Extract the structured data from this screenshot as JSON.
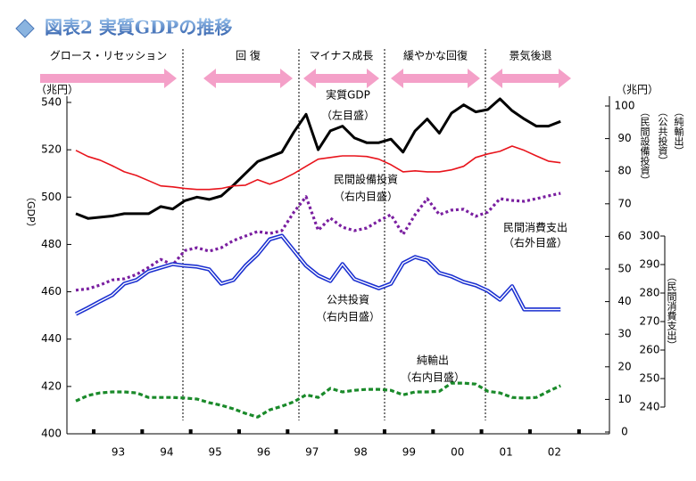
{
  "chart_data": {
    "type": "line",
    "title": "図表2 実質GDPの推移",
    "y_unit": "（兆円）",
    "y_label": "（GDP）",
    "y2_unit": "（兆円）",
    "y2_labels": [
      "（民間設備投資）",
      "（公共投資）",
      "（純輸出）"
    ],
    "y3_label": "（民間消費支出）",
    "phases": [
      "グロース・リセッション",
      "回 復",
      "マイナス成長",
      "緩やかな回復",
      "景気後退"
    ],
    "categories": [
      null,
      null,
      null,
      "93",
      null,
      null,
      null,
      "94",
      null,
      null,
      null,
      "95",
      null,
      null,
      null,
      "96",
      null,
      null,
      null,
      "97",
      null,
      null,
      null,
      "98",
      null,
      null,
      null,
      "99",
      null,
      null,
      null,
      "00",
      null,
      null,
      null,
      "01",
      null,
      null,
      null,
      "02",
      null
    ],
    "ylim": [
      400,
      540
    ],
    "yticks": [
      400,
      420,
      440,
      460,
      480,
      500,
      520,
      540
    ],
    "y2lim": [
      0,
      100
    ],
    "y2ticks": [
      0,
      10,
      20,
      30,
      40,
      50,
      60,
      70,
      80,
      90,
      100
    ],
    "y3lim": [
      240,
      300
    ],
    "y3ticks": [
      240,
      250,
      260,
      270,
      280,
      290,
      300
    ],
    "series": [
      {
        "name": "実質GDP",
        "note": "（左目盛）",
        "color": "#000000",
        "axis": "y",
        "values": [
          493,
          491,
          491.5,
          492,
          493,
          493,
          493,
          496,
          495,
          498.5,
          500,
          499,
          500.5,
          505,
          510,
          515,
          517,
          519,
          527.5,
          535,
          520,
          528,
          530,
          525,
          523,
          523,
          524.5,
          519,
          528,
          533,
          527,
          535.5,
          539,
          536,
          537,
          541.5,
          536.5,
          533,
          530,
          530,
          532
        ]
      },
      {
        "name": "民間設備投資",
        "note": "（右内目盛）",
        "color": "#e8141c",
        "axis": "y2",
        "values": [
          86.4,
          84.5,
          83.4,
          81.7,
          79.8,
          78.7,
          77.1,
          75.5,
          75.2,
          74.7,
          74.4,
          74.4,
          74.7,
          75.5,
          75.7,
          77.4,
          76.0,
          77.4,
          79.3,
          81.5,
          83.7,
          84.2,
          84.7,
          84.7,
          84.5,
          83.7,
          82.0,
          79.8,
          80.1,
          79.8,
          79.8,
          80.4,
          81.5,
          84.2,
          85.3,
          86.1,
          87.7,
          86.4,
          84.7,
          83.1,
          82.6
        ]
      },
      {
        "name": "民間消費支出",
        "note": "（右外目盛）",
        "color": "#7a1fa0",
        "axis": "y3",
        "values": [
          281,
          281.5,
          282.8,
          284.6,
          285,
          286.5,
          289,
          291.8,
          289.9,
          294.9,
          295.9,
          294.7,
          295.9,
          298.4,
          300,
          301.6,
          300.9,
          301.9,
          308.4,
          313.8,
          302,
          306.3,
          303.1,
          301.9,
          302.8,
          305.3,
          307.5,
          300.6,
          307.5,
          313.1,
          307.5,
          309.1,
          309.4,
          306.9,
          308.4,
          313.1,
          312.5,
          312.2,
          313.1,
          314.1,
          315
        ]
      },
      {
        "name": "公共投資",
        "note": "（右内目盛）",
        "color": "#1a2fd0",
        "axis": "y2",
        "values": [
          36.2,
          38.1,
          40.1,
          42.0,
          45.5,
          46.6,
          49.3,
          50.4,
          51.5,
          51.0,
          50.7,
          49.9,
          45.5,
          46.6,
          51.0,
          54.5,
          59.1,
          60.2,
          55.6,
          51.0,
          48.0,
          46.3,
          51.5,
          46.9,
          45.5,
          44.1,
          45.5,
          51.8,
          53.7,
          52.6,
          48.8,
          47.7,
          46.0,
          45.0,
          43.3,
          40.6,
          44.7,
          37.6,
          37.6,
          37.6,
          37.6
        ]
      },
      {
        "name": "純輸出",
        "note": "（右内目盛）",
        "color": "#1a8a2a",
        "axis": "y2",
        "values": [
          9.5,
          11.2,
          12.0,
          12.3,
          12.3,
          12.0,
          10.6,
          10.6,
          10.6,
          10.4,
          10.1,
          9.0,
          8.2,
          7.1,
          5.7,
          4.6,
          6.8,
          7.9,
          9.3,
          11.4,
          10.6,
          13.4,
          12.3,
          12.8,
          13.1,
          13.1,
          12.8,
          11.4,
          12.3,
          12.3,
          12.5,
          15.0,
          15.0,
          14.7,
          12.5,
          12.0,
          10.6,
          10.4,
          10.6,
          12.5,
          14.2
        ]
      }
    ]
  }
}
